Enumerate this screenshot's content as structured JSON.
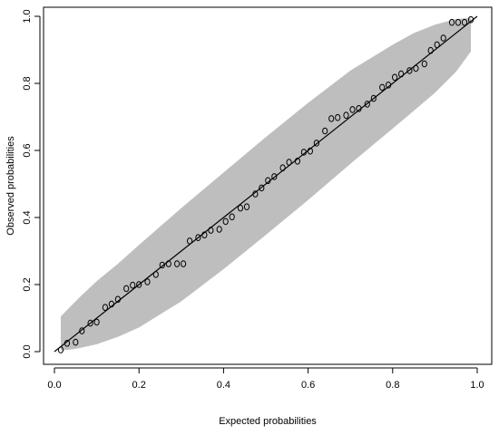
{
  "chart_data": {
    "type": "scatter",
    "title": "",
    "xlabel": "Expected probabilities",
    "ylabel": "Observed probabilities",
    "xlim": [
      0.0,
      1.0
    ],
    "ylim": [
      0.0,
      1.0
    ],
    "x_ticks": [
      0.0,
      0.2,
      0.4,
      0.6,
      0.8,
      1.0
    ],
    "y_ticks": [
      0.0,
      0.2,
      0.4,
      0.6,
      0.8,
      1.0
    ],
    "x_tick_labels": [
      "0.0",
      "0.2",
      "0.4",
      "0.6",
      "0.8",
      "1.0"
    ],
    "y_tick_labels": [
      "0.0",
      "0.2",
      "0.4",
      "0.6",
      "0.8",
      "1.0"
    ],
    "grid": false,
    "band_color": "#bebebe",
    "point_color": "#000000",
    "line_color": "#000000",
    "reference_line": {
      "from": [
        0.0,
        0.0
      ],
      "to": [
        1.0,
        1.0
      ]
    },
    "confidence_band": {
      "upper": [
        [
          0.015,
          0.105
        ],
        [
          0.06,
          0.163
        ],
        [
          0.1,
          0.21
        ],
        [
          0.15,
          0.262
        ],
        [
          0.2,
          0.318
        ],
        [
          0.3,
          0.428
        ],
        [
          0.4,
          0.534
        ],
        [
          0.5,
          0.64
        ],
        [
          0.6,
          0.742
        ],
        [
          0.7,
          0.838
        ],
        [
          0.8,
          0.915
        ],
        [
          0.85,
          0.95
        ],
        [
          0.9,
          0.975
        ],
        [
          0.95,
          0.992
        ],
        [
          0.985,
          0.995
        ]
      ],
      "lower": [
        [
          0.985,
          0.895
        ],
        [
          0.95,
          0.835
        ],
        [
          0.9,
          0.772
        ],
        [
          0.85,
          0.718
        ],
        [
          0.8,
          0.665
        ],
        [
          0.7,
          0.56
        ],
        [
          0.6,
          0.452
        ],
        [
          0.5,
          0.348
        ],
        [
          0.4,
          0.246
        ],
        [
          0.3,
          0.15
        ],
        [
          0.2,
          0.072
        ],
        [
          0.15,
          0.044
        ],
        [
          0.1,
          0.022
        ],
        [
          0.05,
          0.008
        ],
        [
          0.015,
          0.003
        ]
      ]
    },
    "points": [
      [
        0.015,
        0.005
      ],
      [
        0.03,
        0.025
      ],
      [
        0.05,
        0.028
      ],
      [
        0.065,
        0.062
      ],
      [
        0.085,
        0.085
      ],
      [
        0.1,
        0.088
      ],
      [
        0.12,
        0.132
      ],
      [
        0.135,
        0.142
      ],
      [
        0.15,
        0.156
      ],
      [
        0.17,
        0.188
      ],
      [
        0.185,
        0.198
      ],
      [
        0.2,
        0.2
      ],
      [
        0.22,
        0.208
      ],
      [
        0.24,
        0.23
      ],
      [
        0.255,
        0.258
      ],
      [
        0.27,
        0.262
      ],
      [
        0.29,
        0.262
      ],
      [
        0.305,
        0.262
      ],
      [
        0.32,
        0.33
      ],
      [
        0.34,
        0.34
      ],
      [
        0.355,
        0.348
      ],
      [
        0.37,
        0.362
      ],
      [
        0.39,
        0.365
      ],
      [
        0.405,
        0.388
      ],
      [
        0.42,
        0.402
      ],
      [
        0.44,
        0.428
      ],
      [
        0.455,
        0.432
      ],
      [
        0.475,
        0.47
      ],
      [
        0.49,
        0.488
      ],
      [
        0.505,
        0.51
      ],
      [
        0.52,
        0.522
      ],
      [
        0.54,
        0.548
      ],
      [
        0.555,
        0.565
      ],
      [
        0.575,
        0.568
      ],
      [
        0.59,
        0.595
      ],
      [
        0.605,
        0.598
      ],
      [
        0.62,
        0.622
      ],
      [
        0.64,
        0.658
      ],
      [
        0.655,
        0.695
      ],
      [
        0.67,
        0.698
      ],
      [
        0.69,
        0.705
      ],
      [
        0.705,
        0.722
      ],
      [
        0.72,
        0.725
      ],
      [
        0.74,
        0.738
      ],
      [
        0.755,
        0.755
      ],
      [
        0.775,
        0.788
      ],
      [
        0.79,
        0.795
      ],
      [
        0.805,
        0.818
      ],
      [
        0.82,
        0.828
      ],
      [
        0.84,
        0.838
      ],
      [
        0.855,
        0.845
      ],
      [
        0.875,
        0.858
      ],
      [
        0.89,
        0.898
      ],
      [
        0.905,
        0.915
      ],
      [
        0.92,
        0.935
      ],
      [
        0.94,
        0.982
      ],
      [
        0.955,
        0.982
      ],
      [
        0.97,
        0.982
      ],
      [
        0.985,
        0.99
      ]
    ]
  }
}
